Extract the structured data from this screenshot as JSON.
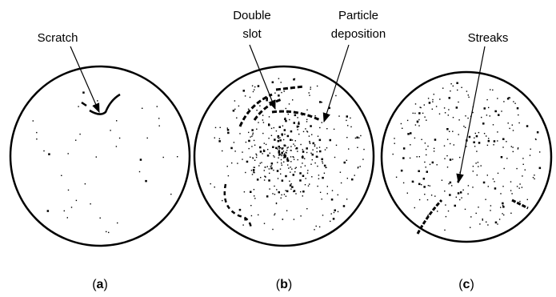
{
  "panels": [
    {
      "label": [
        "(",
        "a",
        ")"
      ],
      "annotations": [
        {
          "lines": [
            "Scratch"
          ]
        }
      ]
    },
    {
      "label": [
        "(",
        "b",
        ")"
      ],
      "annotations": [
        {
          "lines": [
            "Double",
            "slot"
          ]
        },
        {
          "lines": [
            "Particle",
            "deposition"
          ]
        }
      ]
    },
    {
      "label": [
        "(",
        "c",
        ")"
      ],
      "annotations": [
        {
          "lines": [
            "Streaks"
          ]
        }
      ]
    }
  ]
}
